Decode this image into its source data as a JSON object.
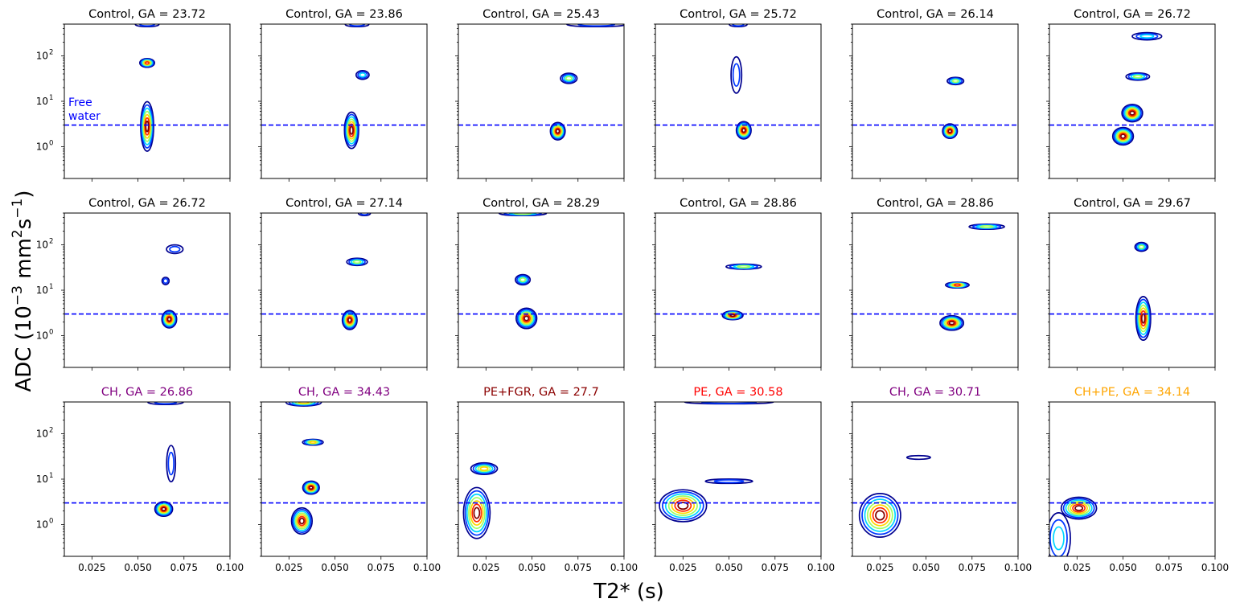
{
  "figure": {
    "xlabel": "T2* (s)",
    "ylabel_main": "ADC (10",
    "ylabel_exp1": "−3",
    "ylabel_mid": " mm",
    "ylabel_exp2": "2",
    "ylabel_s": "s",
    "ylabel_exp3": "−1",
    "ylabel_end": ")"
  },
  "annotation": {
    "line1": "Free",
    "line2": "water",
    "color": "#0000ff"
  },
  "chart_data": {
    "type": "contour",
    "xlim": [
      0.01,
      0.1
    ],
    "ylim": [
      0.2,
      500
    ],
    "yscale": "log",
    "reference_line": {
      "y": 3.0,
      "label": "Free water",
      "style": "dashed",
      "color": "#0000ff"
    },
    "x_ticks": [
      0.025,
      0.05,
      0.075,
      0.1
    ],
    "x_tick_labels": [
      "0.025",
      "0.050",
      "0.075",
      "0.100"
    ],
    "y_ticks": [
      1,
      10,
      100
    ],
    "y_tick_labels": [
      "10",
      "10",
      "10"
    ],
    "y_tick_exps": [
      "0",
      "1",
      "2"
    ],
    "level_colors": [
      "#00008f",
      "#0037ff",
      "#00d6ff",
      "#9dff62",
      "#ffd500",
      "#ff2a00",
      "#800000"
    ],
    "panels": [
      {
        "title": "Control, GA = 23.72",
        "title_color": "#000000",
        "peaks": [
          {
            "x": 0.055,
            "y": 70,
            "sx": 0.0025,
            "sy": 0.06,
            "levels": 6
          },
          {
            "x": 0.055,
            "y": 2.8,
            "sx": 0.0022,
            "sy": 0.34,
            "levels": 7
          },
          {
            "x": 0.055,
            "y": 490,
            "sx": 0.004,
            "sy": 0.03,
            "levels": 2
          }
        ]
      },
      {
        "title": "Control, GA = 23.86",
        "title_color": "#000000",
        "peaks": [
          {
            "x": 0.065,
            "y": 38,
            "sx": 0.0022,
            "sy": 0.06,
            "levels": 3
          },
          {
            "x": 0.059,
            "y": 2.3,
            "sx": 0.0024,
            "sy": 0.25,
            "levels": 7
          },
          {
            "x": 0.062,
            "y": 490,
            "sx": 0.004,
            "sy": 0.03,
            "levels": 2
          }
        ]
      },
      {
        "title": "Control, GA = 25.43",
        "title_color": "#000000",
        "peaks": [
          {
            "x": 0.07,
            "y": 32,
            "sx": 0.0028,
            "sy": 0.07,
            "levels": 4
          },
          {
            "x": 0.064,
            "y": 2.2,
            "sx": 0.0025,
            "sy": 0.12,
            "levels": 7
          },
          {
            "x": 0.085,
            "y": 490,
            "sx": 0.01,
            "sy": 0.03,
            "levels": 2
          }
        ]
      },
      {
        "title": "Control, GA = 25.72",
        "title_color": "#000000",
        "peaks": [
          {
            "x": 0.054,
            "y": 38,
            "sx": 0.0018,
            "sy": 0.25,
            "levels": 2
          },
          {
            "x": 0.058,
            "y": 2.3,
            "sx": 0.0025,
            "sy": 0.12,
            "levels": 7
          },
          {
            "x": 0.055,
            "y": 490,
            "sx": 0.003,
            "sy": 0.03,
            "levels": 2
          }
        ]
      },
      {
        "title": "Control, GA = 26.14",
        "title_color": "#000000",
        "peaks": [
          {
            "x": 0.066,
            "y": 28,
            "sx": 0.0028,
            "sy": 0.05,
            "levels": 4
          },
          {
            "x": 0.063,
            "y": 2.2,
            "sx": 0.0025,
            "sy": 0.1,
            "levels": 7
          }
        ]
      },
      {
        "title": "Control, GA = 26.72",
        "title_color": "#000000",
        "peaks": [
          {
            "x": 0.058,
            "y": 35,
            "sx": 0.004,
            "sy": 0.05,
            "levels": 4
          },
          {
            "x": 0.055,
            "y": 5.5,
            "sx": 0.0035,
            "sy": 0.12,
            "levels": 7
          },
          {
            "x": 0.05,
            "y": 1.7,
            "sx": 0.0035,
            "sy": 0.12,
            "levels": 7
          },
          {
            "x": 0.063,
            "y": 270,
            "sx": 0.005,
            "sy": 0.05,
            "levels": 3
          }
        ]
      },
      {
        "title": "Control, GA = 26.72",
        "title_color": "#000000",
        "peaks": [
          {
            "x": 0.07,
            "y": 80,
            "sx": 0.0028,
            "sy": 0.06,
            "levels": 2
          },
          {
            "x": 0.065,
            "y": 16,
            "sx": 0.0012,
            "sy": 0.05,
            "levels": 2
          },
          {
            "x": 0.067,
            "y": 2.3,
            "sx": 0.0025,
            "sy": 0.12,
            "levels": 7
          }
        ]
      },
      {
        "title": "Control, GA = 27.14",
        "title_color": "#000000",
        "peaks": [
          {
            "x": 0.062,
            "y": 42,
            "sx": 0.0035,
            "sy": 0.05,
            "levels": 4
          },
          {
            "x": 0.058,
            "y": 2.2,
            "sx": 0.0025,
            "sy": 0.13,
            "levels": 7
          },
          {
            "x": 0.066,
            "y": 490,
            "sx": 0.002,
            "sy": 0.03,
            "levels": 2
          }
        ]
      },
      {
        "title": "Control, GA = 28.29",
        "title_color": "#000000",
        "peaks": [
          {
            "x": 0.045,
            "y": 17,
            "sx": 0.0025,
            "sy": 0.07,
            "levels": 4
          },
          {
            "x": 0.047,
            "y": 2.4,
            "sx": 0.0035,
            "sy": 0.14,
            "levels": 7
          },
          {
            "x": 0.045,
            "y": 490,
            "sx": 0.008,
            "sy": 0.03,
            "levels": 4
          }
        ]
      },
      {
        "title": "Control, GA = 28.86",
        "title_color": "#000000",
        "peaks": [
          {
            "x": 0.058,
            "y": 33,
            "sx": 0.006,
            "sy": 0.035,
            "levels": 4
          },
          {
            "x": 0.052,
            "y": 2.8,
            "sx": 0.0035,
            "sy": 0.06,
            "levels": 7
          }
        ]
      },
      {
        "title": "Control, GA = 28.86",
        "title_color": "#000000",
        "peaks": [
          {
            "x": 0.083,
            "y": 250,
            "sx": 0.006,
            "sy": 0.035,
            "levels": 4
          },
          {
            "x": 0.067,
            "y": 13,
            "sx": 0.004,
            "sy": 0.04,
            "levels": 6
          },
          {
            "x": 0.064,
            "y": 1.9,
            "sx": 0.004,
            "sy": 0.1,
            "levels": 7
          }
        ]
      },
      {
        "title": "Control, GA = 29.67",
        "title_color": "#000000",
        "peaks": [
          {
            "x": 0.06,
            "y": 90,
            "sx": 0.0022,
            "sy": 0.06,
            "levels": 4
          },
          {
            "x": 0.061,
            "y": 2.4,
            "sx": 0.0025,
            "sy": 0.3,
            "levels": 7
          }
        ]
      },
      {
        "title": "CH, GA = 26.86",
        "title_color": "#800080",
        "peaks": [
          {
            "x": 0.068,
            "y": 22,
            "sx": 0.0015,
            "sy": 0.25,
            "levels": 2
          },
          {
            "x": 0.064,
            "y": 2.2,
            "sx": 0.003,
            "sy": 0.1,
            "levels": 7
          },
          {
            "x": 0.065,
            "y": 490,
            "sx": 0.006,
            "sy": 0.03,
            "levels": 2
          }
        ]
      },
      {
        "title": "CH, GA = 34.43",
        "title_color": "#800080",
        "peaks": [
          {
            "x": 0.038,
            "y": 65,
            "sx": 0.0035,
            "sy": 0.04,
            "levels": 5
          },
          {
            "x": 0.037,
            "y": 6.5,
            "sx": 0.0028,
            "sy": 0.09,
            "levels": 7
          },
          {
            "x": 0.032,
            "y": 1.2,
            "sx": 0.0035,
            "sy": 0.18,
            "levels": 7
          },
          {
            "x": 0.033,
            "y": 490,
            "sx": 0.006,
            "sy": 0.05,
            "levels": 5
          }
        ]
      },
      {
        "title": "PE+FGR, GA = 27.7",
        "title_color": "#8b0000",
        "peaks": [
          {
            "x": 0.024,
            "y": 17,
            "sx": 0.0045,
            "sy": 0.08,
            "levels": 5
          },
          {
            "x": 0.02,
            "y": 1.8,
            "sx": 0.0045,
            "sy": 0.35,
            "levels": 7
          }
        ]
      },
      {
        "title": "PE, GA = 30.58",
        "title_color": "#ff0000",
        "peaks": [
          {
            "x": 0.05,
            "y": 9,
            "sx": 0.008,
            "sy": 0.03,
            "levels": 2
          },
          {
            "x": 0.025,
            "y": 2.6,
            "sx": 0.008,
            "sy": 0.22,
            "levels": 7
          },
          {
            "x": 0.05,
            "y": 490,
            "sx": 0.015,
            "sy": 0.02,
            "levels": 2
          }
        ]
      },
      {
        "title": "CH, GA = 30.71",
        "title_color": "#800080",
        "peaks": [
          {
            "x": 0.046,
            "y": 30,
            "sx": 0.004,
            "sy": 0.025,
            "levels": 1
          },
          {
            "x": 0.025,
            "y": 1.6,
            "sx": 0.007,
            "sy": 0.3,
            "levels": 7
          }
        ]
      },
      {
        "title": "CH+PE, GA = 34.14",
        "title_color": "#ffa500",
        "peaks": [
          {
            "x": 0.026,
            "y": 2.3,
            "sx": 0.006,
            "sy": 0.15,
            "levels": 7
          },
          {
            "x": 0.015,
            "y": 0.5,
            "sx": 0.004,
            "sy": 0.35,
            "levels": 3
          }
        ]
      }
    ]
  }
}
